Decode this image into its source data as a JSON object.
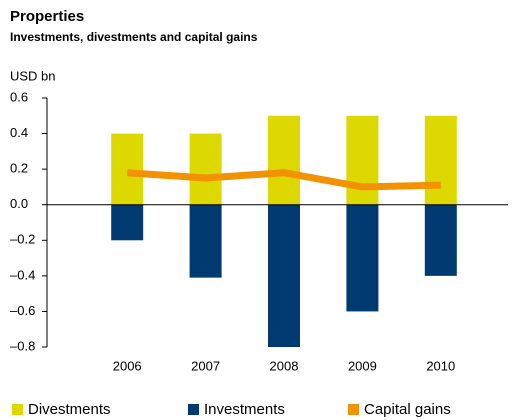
{
  "chart_data": {
    "type": "bar_line",
    "title": "Properties",
    "subtitle": "Investments, divestments and capital gains",
    "y_label": "USD bn",
    "categories": [
      "2006",
      "2007",
      "2008",
      "2009",
      "2010"
    ],
    "series": [
      {
        "name": "Divestments",
        "color": "#dcd800",
        "kind": "bar",
        "values": [
          0.4,
          0.4,
          0.5,
          0.5,
          0.5
        ]
      },
      {
        "name": "Investments",
        "color": "#003a70",
        "kind": "bar",
        "values": [
          -0.2,
          -0.41,
          -0.8,
          -0.6,
          -0.4
        ]
      },
      {
        "name": "Capital gains",
        "color": "#f39200",
        "kind": "line",
        "values": [
          0.18,
          0.15,
          0.18,
          0.1,
          0.11
        ]
      }
    ],
    "ylim": [
      -0.8,
      0.6
    ],
    "yticks": [
      0.6,
      0.4,
      0.2,
      {
        "value": 0,
        "label": "0.0"
      },
      {
        "value": -0.2,
        "label": "–0.2"
      },
      {
        "value": -0.4,
        "label": "–0.4"
      },
      {
        "value": -0.6,
        "label": "–0.6"
      },
      {
        "value": -0.8,
        "label": "–0.8"
      }
    ]
  }
}
